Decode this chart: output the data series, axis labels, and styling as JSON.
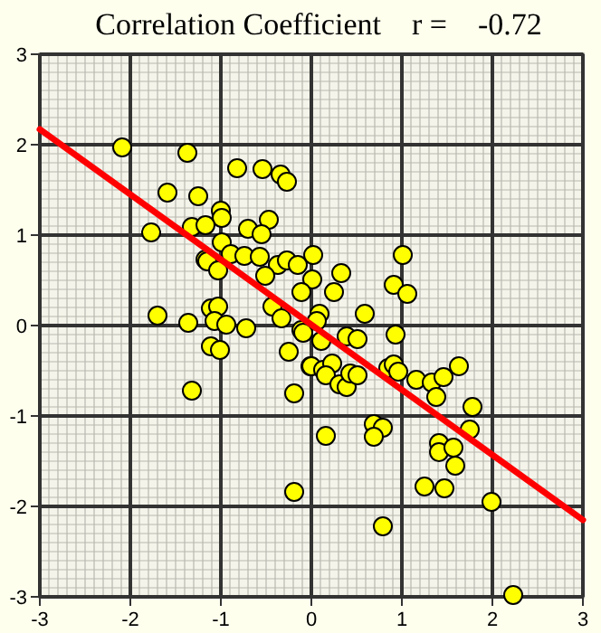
{
  "chart_data": {
    "type": "scatter",
    "title": "Correlation Coefficient    r =    -0.72",
    "xlim": [
      -3,
      3
    ],
    "ylim": [
      -3,
      3
    ],
    "xticks": [
      -3,
      -2,
      -1,
      0,
      1,
      2,
      3
    ],
    "yticks": [
      -3,
      -2,
      -1,
      0,
      1,
      2,
      3
    ],
    "grid": true,
    "series": [
      {
        "color": "#ffff00",
        "marker": "circle",
        "x": [
          -2.09,
          -1.37,
          -0.82,
          -0.54,
          -0.34,
          -0.27,
          -1.59,
          -1.25,
          -1.0,
          -0.99,
          -0.47,
          -1.32,
          -1.17,
          -0.7,
          -0.55,
          -1.77,
          -0.99,
          -1.17,
          -1.15,
          -1.03,
          -0.89,
          -0.74,
          -0.57,
          -0.37,
          -0.27,
          -0.15,
          -0.51,
          0.02,
          0.01,
          -0.11,
          -0.43,
          -0.33,
          -1.7,
          -1.11,
          -1.03,
          -1.36,
          -1.07,
          -0.94,
          -0.72,
          -1.11,
          -1.01,
          -1.32,
          -0.19,
          -0.19,
          -0.11,
          -0.25,
          -0.01,
          0.59,
          0.09,
          0.06,
          -0.09,
          0.11,
          0.39,
          0.51,
          0.93,
          0.0,
          0.13,
          0.23,
          0.16,
          0.31,
          0.39,
          0.43,
          0.51,
          0.85,
          0.91,
          0.96,
          1.16,
          1.33,
          1.46,
          1.38,
          1.63,
          1.78,
          1.75,
          0.69,
          0.79,
          0.69,
          0.16,
          1.41,
          1.41,
          1.57,
          1.59,
          1.25,
          1.47,
          1.99,
          0.79,
          2.23,
          0.33,
          0.25,
          1.01,
          0.91,
          1.06
        ],
        "values": [
          1.97,
          1.91,
          1.74,
          1.73,
          1.67,
          1.59,
          1.47,
          1.43,
          1.27,
          1.19,
          1.17,
          1.09,
          1.11,
          1.07,
          1.01,
          1.03,
          0.92,
          0.73,
          0.71,
          0.61,
          0.79,
          0.77,
          0.76,
          0.67,
          0.72,
          0.67,
          0.55,
          0.78,
          0.51,
          0.37,
          0.21,
          0.08,
          0.11,
          0.19,
          0.21,
          0.03,
          0.05,
          0.01,
          -0.03,
          -0.23,
          -0.27,
          -0.72,
          -0.75,
          -1.84,
          -0.05,
          -0.29,
          -0.45,
          0.13,
          0.13,
          0.05,
          -0.08,
          -0.17,
          -0.12,
          -0.15,
          -0.1,
          -0.45,
          -0.49,
          -0.42,
          -0.55,
          -0.65,
          -0.68,
          -0.53,
          -0.55,
          -0.47,
          -0.43,
          -0.51,
          -0.6,
          -0.63,
          -0.57,
          -0.79,
          -0.45,
          -0.9,
          -1.15,
          -1.09,
          -1.13,
          -1.23,
          -1.22,
          -1.3,
          -1.4,
          -1.35,
          -1.55,
          -1.78,
          -1.8,
          -1.95,
          -2.22,
          -2.98,
          0.58,
          0.37,
          0.78,
          0.45,
          0.35
        ]
      },
      {
        "type": "line",
        "color": "#ff0000",
        "marker": "none",
        "x": [
          -3,
          3
        ],
        "values": [
          2.17,
          -2.15
        ]
      }
    ]
  }
}
